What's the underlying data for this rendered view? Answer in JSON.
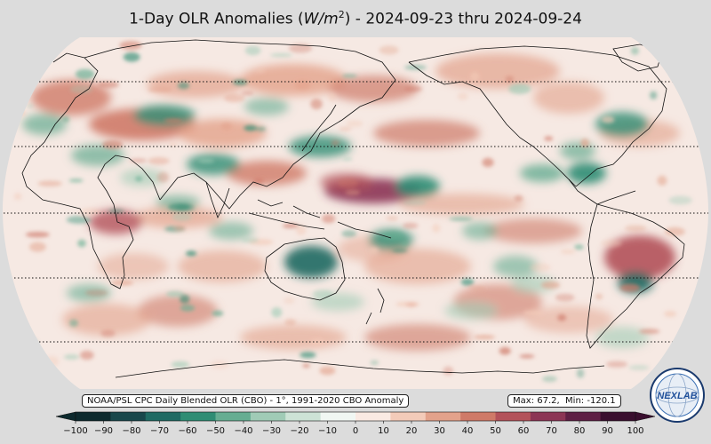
{
  "title": {
    "prefix": "1-Day OLR Anomalies (",
    "unit_base": "W/m",
    "unit_exp": "2",
    "suffix": ") - 2024-09-23 thru 2024-09-24"
  },
  "source_note": "NOAA/PSL CPC Daily Blended OLR (CBO) - 1°, 1991-2020 CBO Anomaly",
  "stats": {
    "max_label": "Max:",
    "max": "67.2",
    "min_label": "Min:",
    "min": "-120.1"
  },
  "colorbar": {
    "ticks": [
      "−100",
      "−90",
      "−80",
      "−70",
      "−60",
      "−50",
      "−40",
      "−30",
      "−20",
      "−10",
      "0",
      "10",
      "20",
      "30",
      "40",
      "50",
      "60",
      "70",
      "80",
      "90",
      "100"
    ],
    "range": [
      -100,
      100
    ],
    "colors": [
      "#0d2a2e",
      "#18474b",
      "#1f6a63",
      "#2f8d74",
      "#66ad92",
      "#a0cbb6",
      "#cde3d6",
      "#f1f7f3",
      "#faeae3",
      "#f3cbb9",
      "#e3a28b",
      "#cf7a68",
      "#b3525a",
      "#8c3555",
      "#5e1f44",
      "#3a0f2f"
    ],
    "scale": "diverging teal-white-maroon"
  },
  "logo": {
    "text": "NEXLAB",
    "icon": "nexlab-globe-logo"
  },
  "map": {
    "projection": "Robinson",
    "center_longitude": 180,
    "gridline_latitudes": [
      -60,
      -30,
      0,
      30,
      60
    ],
    "coastlines": true,
    "field": "OLR anomaly"
  }
}
